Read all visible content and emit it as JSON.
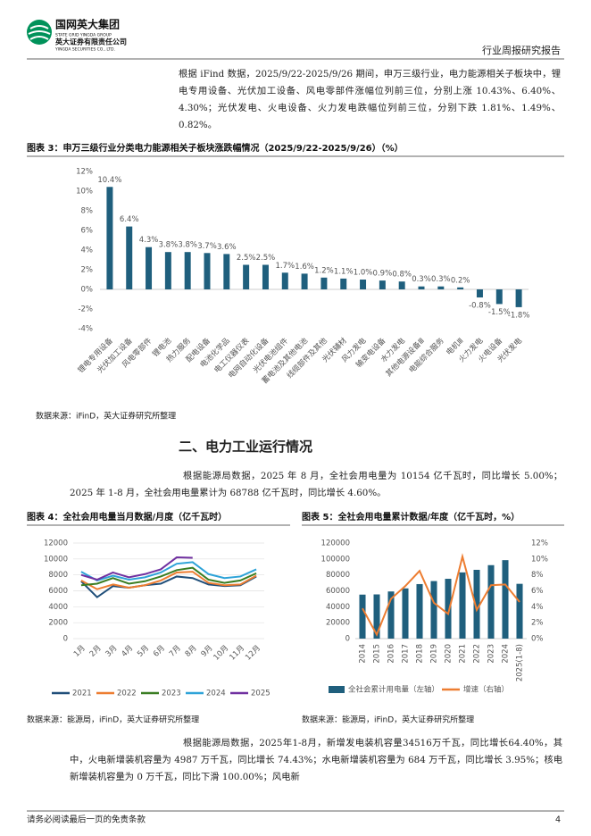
{
  "header": {
    "logo_cn": "国网英大集团",
    "logo_en": "STATE GRID YINGDA GROUP",
    "company_cn": "英大证券有限责任公司",
    "company_en": "YINGDA SECURITIES CO., LTD.",
    "report_type": "行业周报研究报告"
  },
  "paragraphs": [
    "根据 iFind 数据，2025/9/22-2025/9/26 期间，申万三级行业，电力能源相关子板块中，锂电专用设备、光伏加工设备、风电零部件涨幅位列前三位，分别上涨 10.43%、6.40%、4.30%；光伏发电、火电设备、火力发电跌幅位列前三位，分别下跌 1.81%、1.49%、0.82%。",
    "根据能源局数据，2025 年 8 月，全社会用电量为 10154 亿千瓦时，同比增长 5.00%；2025 年 1-8 月，全社会用电量累计为 68788 亿千瓦时，同比增长 4.60%。",
    "根据能源局数据，2025年1-8月，新增发电装机容量34516万千瓦，同比增长64.40%，其中，火电新增装机容量为 4987 万千瓦，同比增长 74.43%；水电新增装机容量为 684 万千瓦，同比增长 3.95%；核电新增装机容量为 0 万千瓦，同比下滑 100.00%；风电新"
  ],
  "section_heading": "二、电力工业运行情况",
  "footer": {
    "disclaimer": "请务必阅读最后一页的免责条款",
    "page": "4"
  },
  "chart_data": [
    {
      "type": "bar",
      "title": "图表 3：申万三级行业分类电力能源相关子板块涨跌幅情况（2025/9/22-2025/9/26）（%）",
      "categories": [
        "锂电专用设备",
        "光伏加工设备",
        "风电零部件",
        "锂电池",
        "热力服务",
        "配电设备",
        "电池化学品",
        "电工仪器仪表",
        "电网自动化设备",
        "光伏电池组件",
        "蓄电池及其他电池",
        "线缆部件及其他",
        "光伏辅材",
        "风力发电",
        "输变电设备",
        "水力发电",
        "其他电源设备Ⅲ",
        "电能综合服务",
        "电机Ⅲ",
        "火力发电",
        "火电设备",
        "光伏发电"
      ],
      "values": [
        10.43,
        6.4,
        4.3,
        3.8,
        3.8,
        3.7,
        3.6,
        2.5,
        2.5,
        1.7,
        1.6,
        1.2,
        1.1,
        1.0,
        0.9,
        0.8,
        0.3,
        0.3,
        0.2,
        -0.82,
        -1.49,
        -1.81
      ],
      "value_labels": [
        "10.4%",
        "6.4%",
        "4.3%",
        "3.8%",
        "3.8%",
        "3.7%",
        "3.6%",
        "2.5%",
        "2.5%",
        "1.7%",
        "1.6%",
        "1.2%",
        "1.1%",
        "1.0%",
        "0.9%",
        "0.8%",
        "0.3%",
        "0.3%",
        "0.2%",
        "-0.8%",
        "-1.5%",
        "-1.8%"
      ],
      "color": "#1f5f7d",
      "ylim": [
        -4,
        12
      ],
      "yticks": [
        {
          "value": -4,
          "label": "-4%"
        },
        {
          "value": -2,
          "label": "-2%"
        },
        {
          "value": 0,
          "label": "0%"
        },
        {
          "value": 2,
          "label": "2%"
        },
        {
          "value": 4,
          "label": "4%"
        },
        {
          "value": 6,
          "label": "6%"
        },
        {
          "value": 8,
          "label": "8%"
        },
        {
          "value": 10,
          "label": "10%"
        },
        {
          "value": 12,
          "label": "12%"
        }
      ],
      "grid": false,
      "source": "数据来源：iFinD，英大证券研究所整理"
    },
    {
      "type": "line",
      "title": "图表 4：全社会用电量当月数据/月度（亿千瓦时）",
      "categories": [
        "1月",
        "2月",
        "3月",
        "4月",
        "5月",
        "6月",
        "7月",
        "8月",
        "9月",
        "10月",
        "11月",
        "12月"
      ],
      "series": [
        {
          "name": "2021",
          "color": "#1f4e79",
          "values": [
            7200,
            5200,
            6600,
            6400,
            6700,
            6900,
            7800,
            7600,
            6800,
            6600,
            6700,
            7800
          ]
        },
        {
          "name": "2022",
          "color": "#ed7d31",
          "values": [
            7300,
            6200,
            6800,
            6400,
            6700,
            7300,
            8300,
            8400,
            7000,
            6700,
            6800,
            7900
          ]
        },
        {
          "name": "2023",
          "color": "#3a7d22",
          "values": [
            6700,
            6900,
            7600,
            6900,
            7200,
            7800,
            8600,
            8900,
            7400,
            7000,
            7300,
            8200
          ]
        },
        {
          "name": "2024",
          "color": "#2ea3d8",
          "values": [
            8400,
            7300,
            7900,
            7400,
            7700,
            8300,
            9400,
            9600,
            8100,
            7600,
            7800,
            8700
          ]
        },
        {
          "name": "2025",
          "color": "#7030a0",
          "values": [
            8000,
            7400,
            8300,
            7700,
            8100,
            8700,
            10200,
            10154,
            null,
            null,
            null,
            null
          ]
        }
      ],
      "ylim": [
        0,
        12000
      ],
      "yticks": [
        0,
        2000,
        4000,
        6000,
        8000,
        10000,
        12000
      ],
      "grid": true,
      "legend": "bottom",
      "source": "数据来源：能源局，iFinD，英大证券研究所整理"
    },
    {
      "type": "bar_line",
      "title": "图表 5：全社会用电量累计数据/年度（亿千瓦时，%）",
      "categories": [
        "2014",
        "2015",
        "2016",
        "2017",
        "2018",
        "2019",
        "2020",
        "2021",
        "2022",
        "2023",
        "2024",
        "2025(1-8)"
      ],
      "series": [
        {
          "name": "全社会累计用电量（左轴）",
          "color": "#1f5f7d",
          "type": "bar",
          "values": [
            55233,
            55500,
            59198,
            63077,
            68449,
            72255,
            75110,
            83128,
            86372,
            92241,
            98521,
            68788
          ]
        },
        {
          "name": "增速（右轴）",
          "color": "#ed7d31",
          "type": "line",
          "axis": "y2",
          "values": [
            3.8,
            0.5,
            5.0,
            6.6,
            8.5,
            4.5,
            3.1,
            10.3,
            3.6,
            6.7,
            6.8,
            4.6
          ]
        }
      ],
      "ylim": [
        0,
        120000
      ],
      "yticks": [
        0,
        20000,
        40000,
        60000,
        80000,
        100000,
        120000
      ],
      "y2lim": [
        0,
        12
      ],
      "y2ticks": [
        {
          "value": 0,
          "label": "0%"
        },
        {
          "value": 2,
          "label": "2%"
        },
        {
          "value": 4,
          "label": "4%"
        },
        {
          "value": 6,
          "label": "6%"
        },
        {
          "value": 8,
          "label": "8%"
        },
        {
          "value": 10,
          "label": "10%"
        },
        {
          "value": 12,
          "label": "12%"
        }
      ],
      "grid": false,
      "legend": "bottom",
      "source": "数据来源：能源局，iFinD，英大证券研究所整理"
    }
  ]
}
